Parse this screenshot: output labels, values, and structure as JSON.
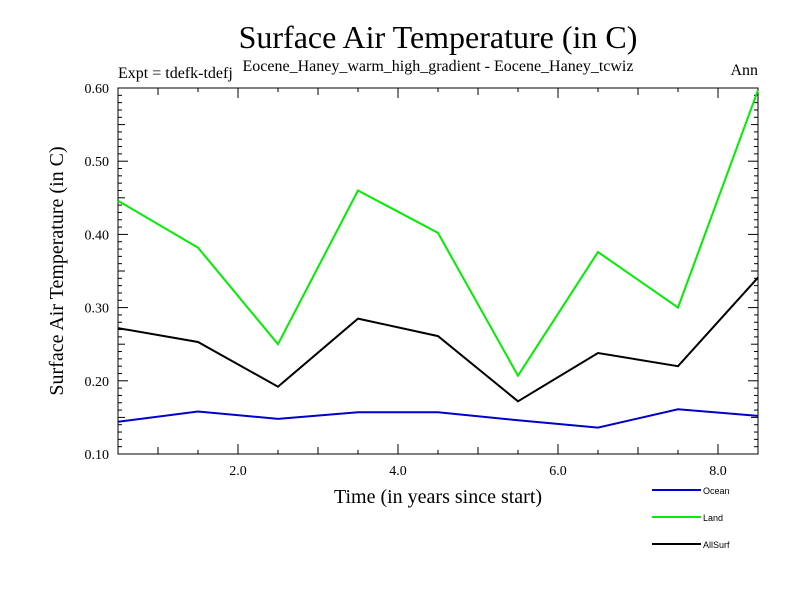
{
  "chart_data": {
    "type": "line",
    "title": "Surface Air Temperature (in C)",
    "subtitle": "Eocene_Haney_warm_high_gradient - Eocene_Haney_tcwiz",
    "expt_label": "Expt = tdefk-tdefj",
    "period_label": "Ann",
    "xlabel": "Time (in years since start)",
    "ylabel": "Surface Air Temperature (in C)",
    "xlim": [
      0.5,
      8.5
    ],
    "ylim": [
      0.1,
      0.6
    ],
    "x_ticks": [
      2.0,
      4.0,
      6.0,
      8.0
    ],
    "x_tick_labels": [
      "2.0",
      "4.0",
      "6.0",
      "8.0"
    ],
    "y_ticks": [
      0.1,
      0.2,
      0.3,
      0.4,
      0.5,
      0.6
    ],
    "y_tick_labels": [
      "0.10",
      "0.20",
      "0.30",
      "0.40",
      "0.50",
      "0.60"
    ],
    "grid": false,
    "legend_position": "bottom-right",
    "x": [
      0.5,
      1.5,
      2.5,
      3.5,
      4.5,
      5.5,
      6.5,
      7.5,
      8.5
    ],
    "series": [
      {
        "name": "Ocean",
        "color": "#0000cc",
        "values": [
          0.144,
          0.158,
          0.148,
          0.157,
          0.157,
          0.146,
          0.136,
          0.161,
          0.152
        ]
      },
      {
        "name": "Land",
        "color": "#00ee00",
        "values": [
          0.446,
          0.382,
          0.25,
          0.46,
          0.402,
          0.207,
          0.376,
          0.3,
          0.597
        ]
      },
      {
        "name": "AllSurf",
        "color": "#000000",
        "values": [
          0.272,
          0.253,
          0.192,
          0.285,
          0.261,
          0.172,
          0.238,
          0.22,
          0.341
        ]
      }
    ]
  }
}
